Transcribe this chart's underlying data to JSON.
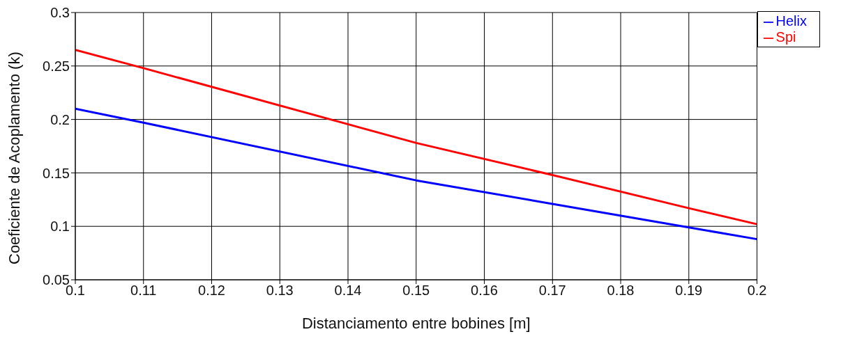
{
  "chart_data": {
    "type": "line",
    "xlabel": "Distanciamento entre bobines [m]",
    "ylabel": "Coeficiente de Acoplamento (k)",
    "x": [
      0.1,
      0.11,
      0.15,
      0.17,
      0.19,
      0.2
    ],
    "series": [
      {
        "name": "Helix",
        "color": "#0000ff",
        "values": [
          0.21,
          0.197,
          0.143,
          0.121,
          0.099,
          0.088
        ]
      },
      {
        "name": "Spi",
        "color": "#ff0000",
        "values": [
          0.265,
          0.248,
          0.178,
          0.148,
          0.117,
          0.102
        ]
      }
    ],
    "xlim": [
      0.1,
      0.2
    ],
    "xticks": [
      0.1,
      0.11,
      0.12,
      0.13,
      0.14,
      0.15,
      0.16,
      0.17,
      0.18,
      0.19,
      0.2
    ],
    "ylim": [
      0.05,
      0.3
    ],
    "yticks": [
      0.05,
      0.1,
      0.15,
      0.2,
      0.25,
      0.3
    ],
    "grid": true,
    "legend": "top right",
    "marker": "none",
    "line_style": "solid"
  }
}
